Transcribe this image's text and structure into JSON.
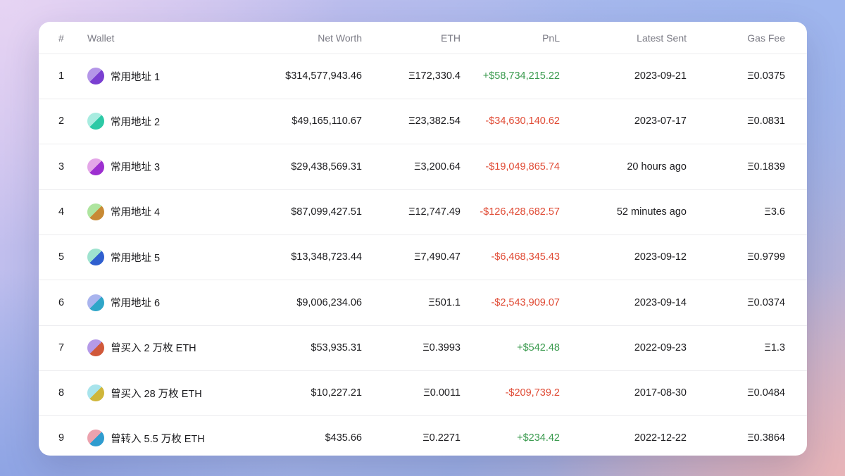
{
  "header": {
    "index": "#",
    "wallet": "Wallet",
    "net_worth": "Net Worth",
    "eth": "ETH",
    "pnl": "PnL",
    "latest_sent": "Latest Sent",
    "gas_fee": "Gas Fee"
  },
  "rows": [
    {
      "index": "1",
      "wallet": "常用地址 1",
      "avatar": [
        "#7a3fd1",
        "#b496e8"
      ],
      "net_worth": "$314,577,943.46",
      "eth": "Ξ172,330.4",
      "pnl": "+$58,734,215.22",
      "pnl_sign": "pos",
      "latest_sent": "2023-09-21",
      "gas_fee": "Ξ0.0375"
    },
    {
      "index": "2",
      "wallet": "常用地址 2",
      "avatar": [
        "#2cc9a5",
        "#a8ece0"
      ],
      "net_worth": "$49,165,110.67",
      "eth": "Ξ23,382.54",
      "pnl": "-$34,630,140.62",
      "pnl_sign": "neg",
      "latest_sent": "2023-07-17",
      "gas_fee": "Ξ0.0831"
    },
    {
      "index": "3",
      "wallet": "常用地址 3",
      "avatar": [
        "#9d2fd0",
        "#e4a6e8"
      ],
      "net_worth": "$29,438,569.31",
      "eth": "Ξ3,200.64",
      "pnl": "-$19,049,865.74",
      "pnl_sign": "neg",
      "latest_sent": "20 hours ago",
      "gas_fee": "Ξ0.1839"
    },
    {
      "index": "4",
      "wallet": "常用地址 4",
      "avatar": [
        "#c88a34",
        "#aee59f"
      ],
      "net_worth": "$87,099,427.51",
      "eth": "Ξ12,747.49",
      "pnl": "-$126,428,682.57",
      "pnl_sign": "neg",
      "latest_sent": "52 minutes ago",
      "gas_fee": "Ξ3.6"
    },
    {
      "index": "5",
      "wallet": "常用地址 5",
      "avatar": [
        "#2f5fcf",
        "#9ee3cf"
      ],
      "net_worth": "$13,348,723.44",
      "eth": "Ξ7,490.47",
      "pnl": "-$6,468,345.43",
      "pnl_sign": "neg",
      "latest_sent": "2023-09-12",
      "gas_fee": "Ξ0.9799"
    },
    {
      "index": "6",
      "wallet": "常用地址 6",
      "avatar": [
        "#2fa6c8",
        "#a9b4ee"
      ],
      "net_worth": "$9,006,234.06",
      "eth": "Ξ501.1",
      "pnl": "-$2,543,909.07",
      "pnl_sign": "neg",
      "latest_sent": "2023-09-14",
      "gas_fee": "Ξ0.0374"
    },
    {
      "index": "7",
      "wallet": "曾买入 2 万枚 ETH",
      "avatar": [
        "#d0583a",
        "#b59ae8"
      ],
      "net_worth": "$53,935.31",
      "eth": "Ξ0.3993",
      "pnl": "+$542.48",
      "pnl_sign": "pos",
      "latest_sent": "2022-09-23",
      "gas_fee": "Ξ1.3"
    },
    {
      "index": "8",
      "wallet": "曾买入 28 万枚 ETH",
      "avatar": [
        "#cfb63a",
        "#a8e4ec"
      ],
      "net_worth": "$10,227.21",
      "eth": "Ξ0.0011",
      "pnl": "-$209,739.2",
      "pnl_sign": "neg",
      "latest_sent": "2017-08-30",
      "gas_fee": "Ξ0.0484"
    },
    {
      "index": "9",
      "wallet": "曾转入 5.5 万枚 ETH",
      "avatar": [
        "#2f9ccf",
        "#eca2ae"
      ],
      "net_worth": "$435.66",
      "eth": "Ξ0.2271",
      "pnl": "+$234.42",
      "pnl_sign": "pos",
      "latest_sent": "2022-12-22",
      "gas_fee": "Ξ0.3864"
    }
  ]
}
